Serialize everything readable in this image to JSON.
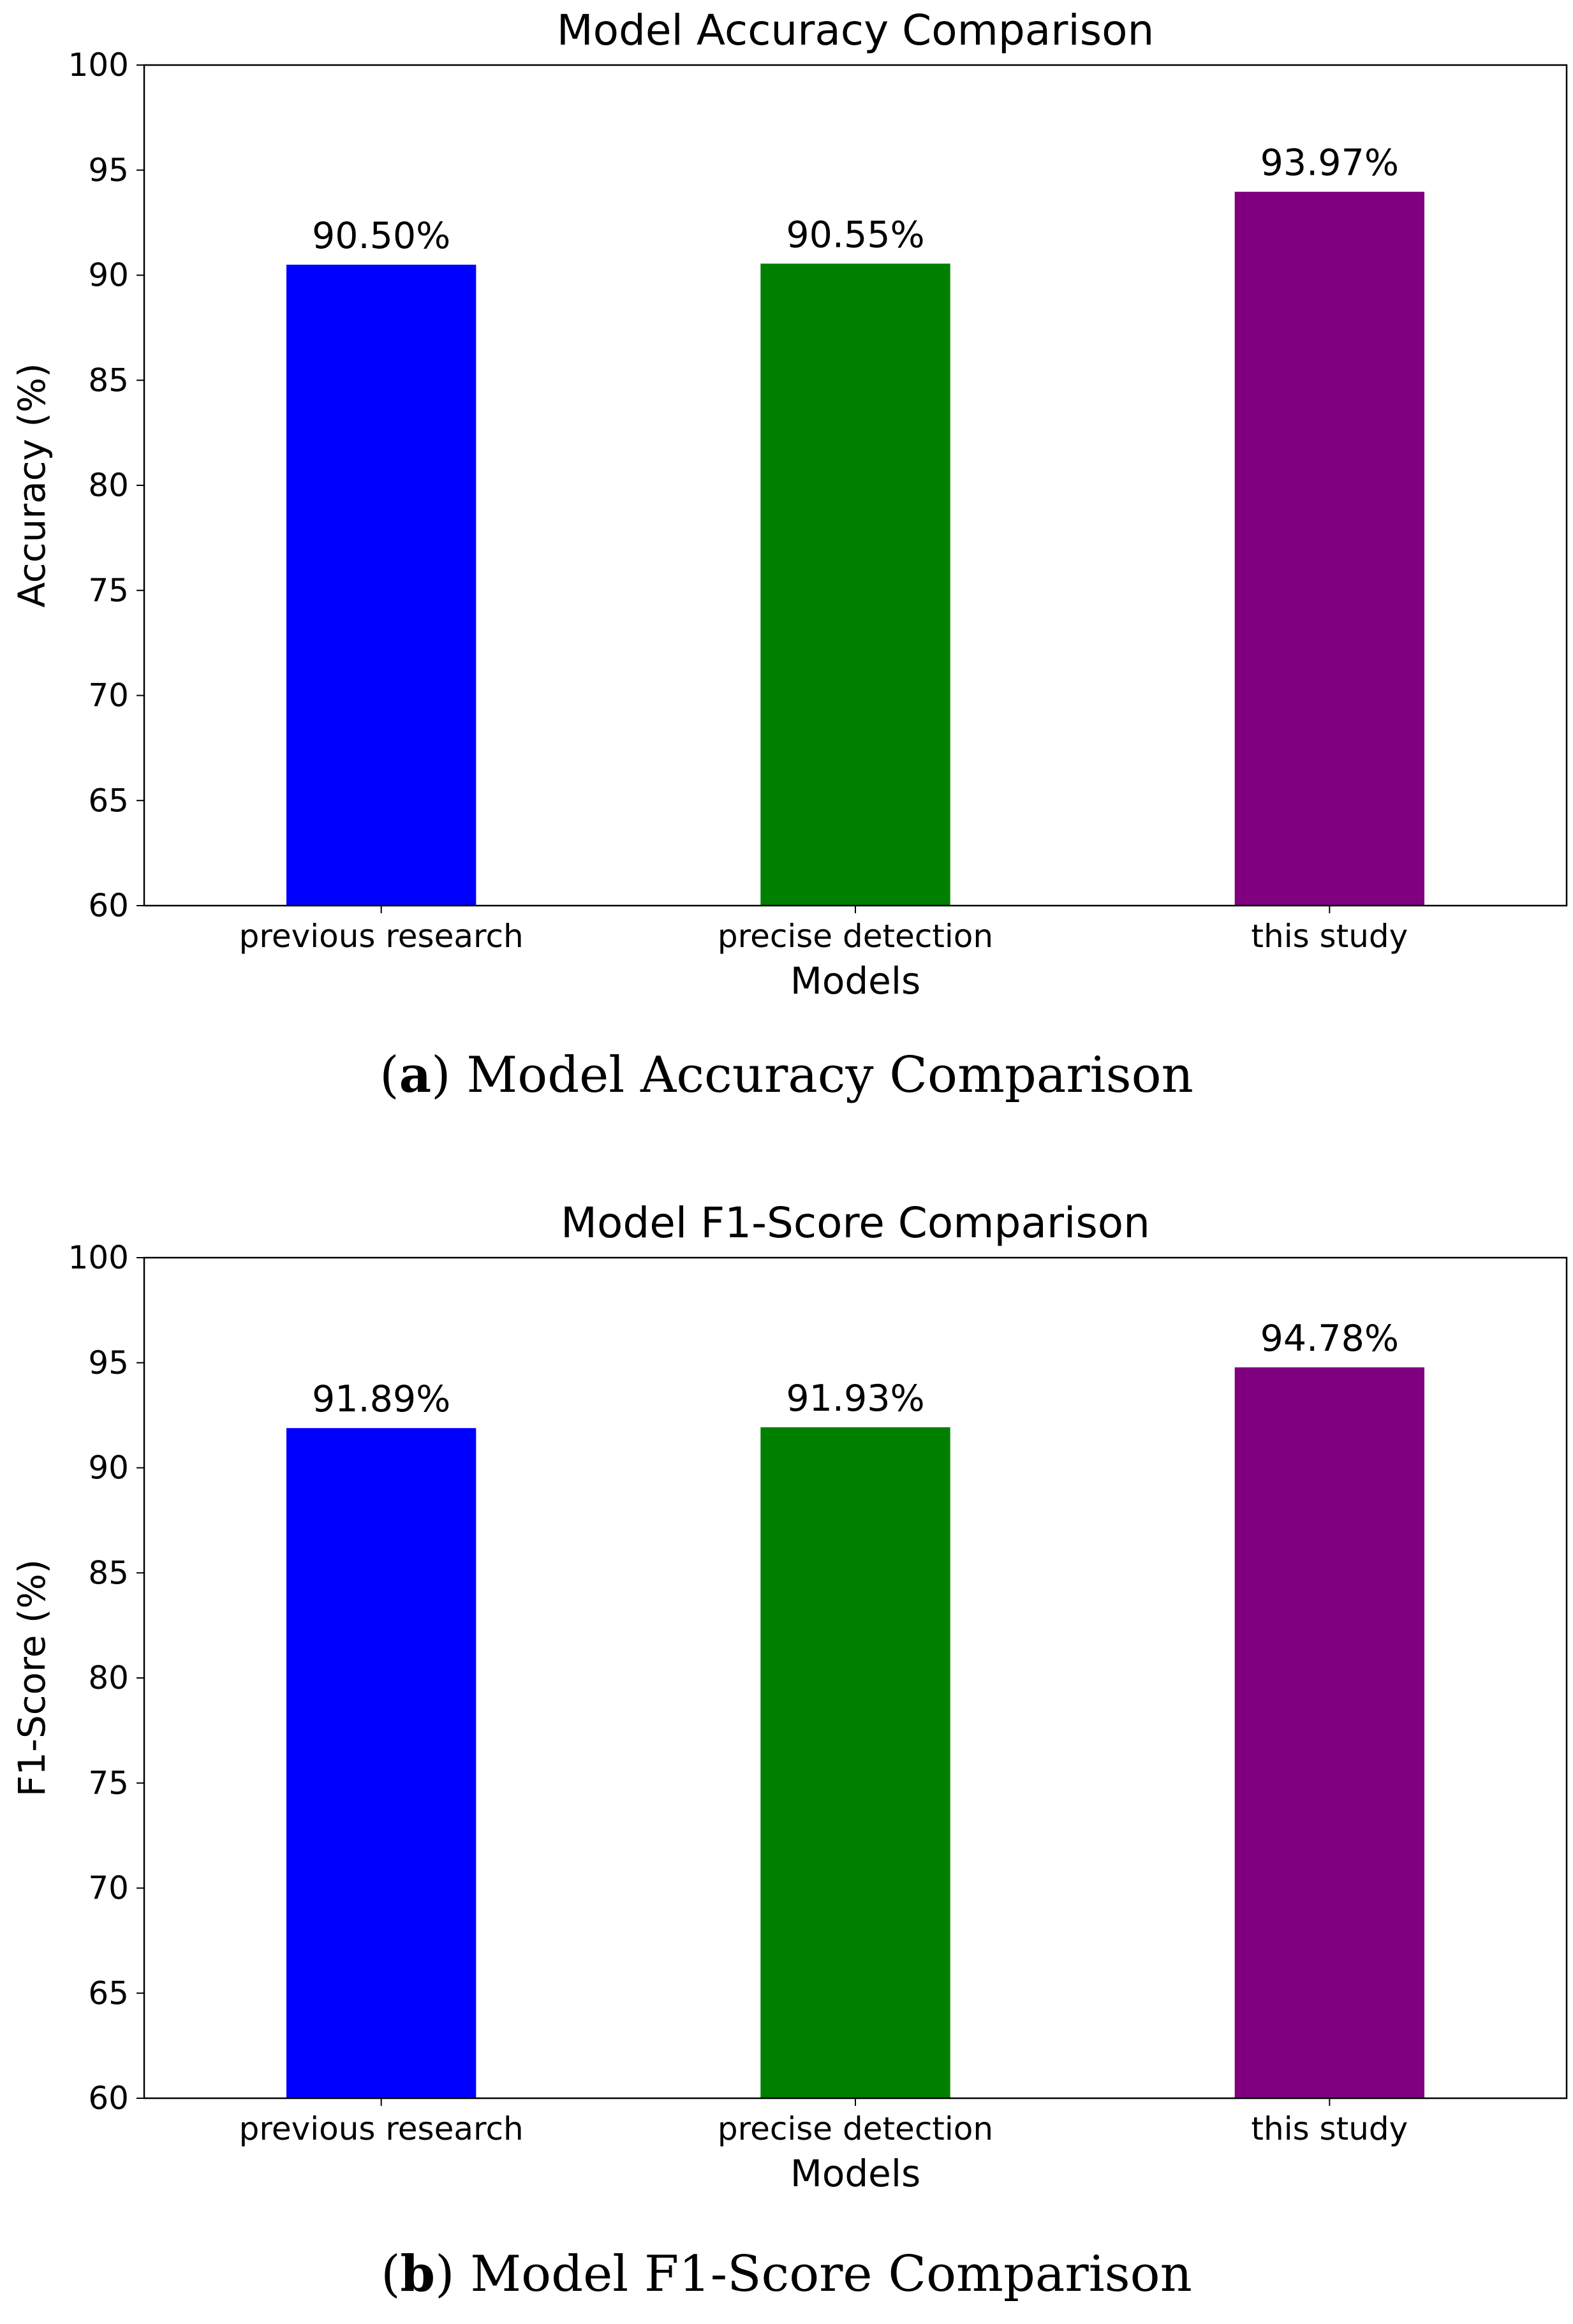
{
  "chart_data": [
    {
      "type": "bar",
      "title": "Model Accuracy Comparison",
      "xlabel": "Models",
      "ylabel": "Accuracy (%)",
      "categories": [
        "previous research",
        "precise detection",
        "this study"
      ],
      "values": [
        90.5,
        90.55,
        93.97
      ],
      "value_labels": [
        "90.50%",
        "90.55%",
        "93.97%"
      ],
      "colors": [
        "#0000ff",
        "#008000",
        "#800080"
      ],
      "ylim": [
        60,
        100
      ],
      "yticks": [
        60,
        65,
        70,
        75,
        80,
        85,
        90,
        95,
        100
      ],
      "grid": false
    },
    {
      "type": "bar",
      "title": "Model F1-Score Comparison",
      "xlabel": "Models",
      "ylabel": "F1-Score (%)",
      "categories": [
        "previous research",
        "precise detection",
        "this study"
      ],
      "values": [
        91.89,
        91.93,
        94.78
      ],
      "value_labels": [
        "91.89%",
        "91.93%",
        "94.78%"
      ],
      "colors": [
        "#0000ff",
        "#008000",
        "#800080"
      ],
      "ylim": [
        60,
        100
      ],
      "yticks": [
        60,
        65,
        70,
        75,
        80,
        85,
        90,
        95,
        100
      ],
      "grid": false
    }
  ],
  "captions": [
    {
      "letter": "a",
      "text": " Model Accuracy Comparison"
    },
    {
      "letter": "b",
      "text": " Model F1-Score Comparison"
    }
  ]
}
